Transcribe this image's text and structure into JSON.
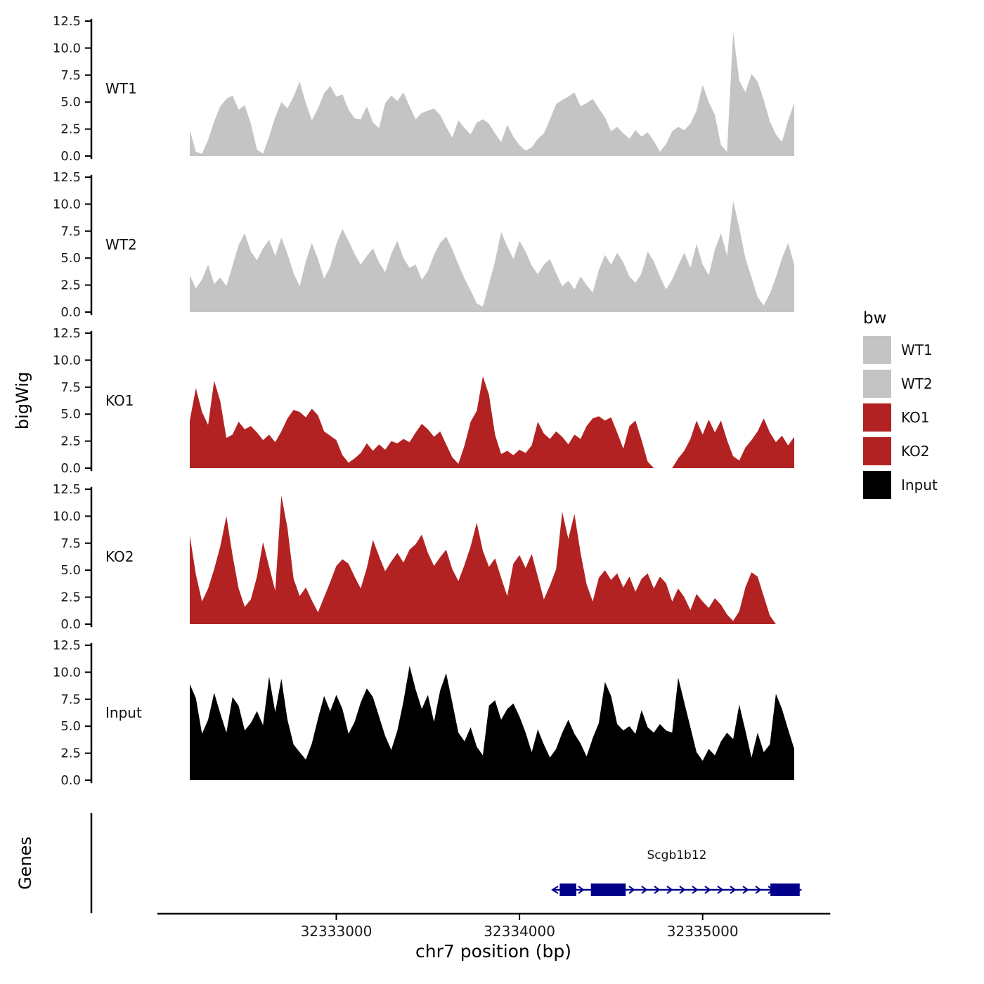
{
  "chart_data": {
    "type": "area",
    "title": "",
    "xlabel": "chr7 position (bp)",
    "ylabel": "bigWig",
    "x_range_bp": [
      32332200,
      32335500
    ],
    "x_ticks_bp": [
      32333000,
      32334000,
      32335000
    ],
    "y_range": [
      0,
      12.5
    ],
    "y_ticks": [
      0.0,
      2.5,
      5.0,
      7.5,
      10.0,
      12.5
    ],
    "tracks": [
      {
        "name": "WT1",
        "color": "#C4C4C4",
        "values": [
          2.4,
          0.4,
          0.2,
          1.5,
          3.2,
          4.6,
          5.3,
          5.6,
          4.3,
          4.7,
          3.0,
          0.6,
          0.2,
          1.8,
          3.6,
          5.0,
          4.4,
          5.5,
          6.9,
          4.9,
          3.3,
          4.4,
          5.8,
          6.5,
          5.5,
          5.7,
          4.3,
          3.5,
          3.4,
          4.6,
          3.1,
          2.6,
          4.9,
          5.6,
          5.1,
          5.9,
          4.6,
          3.4,
          4.0,
          4.2,
          4.4,
          3.8,
          2.7,
          1.7,
          3.3,
          2.6,
          2.0,
          3.1,
          3.4,
          3.0,
          2.1,
          1.3,
          2.9,
          1.8,
          1.0,
          0.5,
          0.8,
          1.6,
          2.1,
          3.4,
          4.8,
          5.2,
          5.5,
          5.9,
          4.6,
          4.9,
          5.3,
          4.4,
          3.6,
          2.3,
          2.7,
          2.1,
          1.6,
          2.4,
          1.8,
          2.2,
          1.4,
          0.4,
          1.1,
          2.3,
          2.7,
          2.4,
          3.0,
          4.2,
          6.6,
          5.0,
          3.8,
          1.0,
          0.4,
          11.5,
          7.0,
          5.9,
          7.6,
          6.9,
          5.2,
          3.2,
          2.0,
          1.3,
          3.3,
          4.9
        ]
      },
      {
        "name": "WT2",
        "color": "#C4C4C4",
        "values": [
          3.4,
          2.2,
          3.0,
          4.4,
          2.6,
          3.2,
          2.4,
          4.3,
          6.2,
          7.3,
          5.6,
          4.8,
          5.9,
          6.7,
          5.2,
          6.9,
          5.4,
          3.6,
          2.4,
          4.7,
          6.4,
          4.9,
          3.1,
          4.2,
          6.3,
          7.7,
          6.6,
          5.4,
          4.4,
          5.2,
          5.9,
          4.6,
          3.7,
          5.4,
          6.6,
          5.0,
          4.1,
          4.4,
          3.0,
          3.8,
          5.3,
          6.4,
          7.0,
          5.8,
          4.4,
          3.1,
          2.0,
          0.8,
          0.5,
          2.6,
          4.7,
          7.4,
          6.1,
          4.9,
          6.6,
          5.6,
          4.3,
          3.5,
          4.4,
          4.9,
          3.6,
          2.4,
          2.9,
          2.1,
          3.3,
          2.5,
          1.8,
          3.9,
          5.3,
          4.4,
          5.5,
          4.6,
          3.3,
          2.7,
          3.6,
          5.6,
          4.7,
          3.3,
          2.1,
          3.0,
          4.3,
          5.5,
          4.1,
          6.3,
          4.4,
          3.4,
          5.8,
          7.3,
          5.2,
          10.3,
          7.8,
          5.0,
          3.2,
          1.4,
          0.6,
          1.7,
          3.2,
          5.0,
          6.4,
          4.4
        ]
      },
      {
        "name": "KO1",
        "color": "#B22222",
        "values": [
          4.4,
          7.4,
          5.2,
          4.0,
          8.1,
          6.2,
          2.8,
          3.1,
          4.3,
          3.6,
          3.9,
          3.3,
          2.6,
          3.1,
          2.4,
          3.4,
          4.6,
          5.4,
          5.2,
          4.7,
          5.5,
          4.9,
          3.4,
          3.0,
          2.6,
          1.2,
          0.5,
          0.9,
          1.4,
          2.3,
          1.6,
          2.2,
          1.7,
          2.5,
          2.3,
          2.7,
          2.4,
          3.3,
          4.1,
          3.6,
          2.9,
          3.4,
          2.2,
          1.0,
          0.4,
          2.1,
          4.3,
          5.3,
          8.5,
          6.8,
          3.1,
          1.3,
          1.6,
          1.2,
          1.7,
          1.4,
          2.1,
          4.3,
          3.2,
          2.7,
          3.4,
          2.9,
          2.2,
          3.1,
          2.7,
          3.9,
          4.6,
          4.8,
          4.4,
          4.7,
          3.3,
          1.8,
          3.9,
          4.4,
          2.6,
          0.6,
          0,
          0,
          0,
          0,
          0.9,
          1.6,
          2.7,
          4.4,
          3.1,
          4.5,
          3.3,
          4.4,
          2.6,
          1.1,
          0.7,
          1.9,
          2.6,
          3.4,
          4.6,
          3.3,
          2.4,
          3.0,
          2.1,
          2.9
        ]
      },
      {
        "name": "KO2",
        "color": "#B22222",
        "values": [
          8.2,
          4.6,
          2.1,
          3.3,
          5.1,
          7.2,
          10.0,
          6.4,
          3.3,
          1.6,
          2.3,
          4.4,
          7.6,
          5.3,
          3.1,
          11.9,
          8.9,
          4.2,
          2.6,
          3.4,
          2.2,
          1.1,
          2.5,
          3.9,
          5.4,
          6.0,
          5.6,
          4.4,
          3.3,
          5.2,
          7.8,
          6.3,
          4.9,
          5.8,
          6.6,
          5.7,
          6.9,
          7.4,
          8.3,
          6.6,
          5.4,
          6.2,
          6.9,
          5.1,
          4.0,
          5.5,
          7.2,
          9.4,
          6.8,
          5.3,
          6.1,
          4.3,
          2.6,
          5.6,
          6.4,
          5.2,
          6.5,
          4.4,
          2.3,
          3.6,
          5.1,
          10.4,
          7.9,
          10.2,
          6.6,
          3.7,
          2.1,
          4.3,
          5.0,
          4.1,
          4.7,
          3.4,
          4.4,
          3.0,
          4.2,
          4.7,
          3.3,
          4.4,
          3.8,
          2.1,
          3.3,
          2.5,
          1.3,
          2.8,
          2.1,
          1.5,
          2.4,
          1.8,
          0.9,
          0.3,
          1.2,
          3.4,
          4.8,
          4.4,
          2.6,
          0.8,
          0,
          0,
          0,
          0
        ]
      },
      {
        "name": "Input",
        "color": "#000000",
        "values": [
          8.9,
          7.6,
          4.3,
          5.6,
          8.1,
          6.2,
          4.4,
          7.7,
          6.9,
          4.6,
          5.3,
          6.4,
          5.1,
          9.6,
          6.3,
          9.4,
          5.6,
          3.3,
          2.6,
          1.9,
          3.4,
          5.7,
          7.8,
          6.4,
          7.9,
          6.6,
          4.3,
          5.4,
          7.2,
          8.5,
          7.7,
          5.9,
          4.1,
          2.8,
          4.6,
          7.3,
          10.6,
          8.4,
          6.6,
          7.9,
          5.4,
          8.3,
          9.9,
          7.2,
          4.4,
          3.6,
          4.9,
          3.1,
          2.3,
          6.9,
          7.4,
          5.6,
          6.6,
          7.1,
          5.9,
          4.4,
          2.6,
          4.7,
          3.3,
          2.1,
          2.9,
          4.4,
          5.6,
          4.3,
          3.4,
          2.2,
          3.9,
          5.3,
          9.1,
          7.8,
          5.2,
          4.6,
          5.0,
          4.3,
          6.5,
          4.9,
          4.4,
          5.2,
          4.6,
          4.4,
          9.5,
          7.2,
          4.9,
          2.6,
          1.8,
          2.9,
          2.3,
          3.6,
          4.4,
          3.8,
          7.0,
          4.6,
          2.1,
          4.4,
          2.6,
          3.3,
          8.0,
          6.6,
          4.7,
          2.9
        ]
      }
    ],
    "genes_track": {
      "label": "Genes",
      "gene_color": "#00008B",
      "genes": [
        {
          "name": "Scgb1b12",
          "strand": "+",
          "start_bp": 32334180,
          "end_bp": 32335540,
          "exons_bp": [
            [
              32334220,
              32334310
            ],
            [
              32334390,
              32334580
            ],
            [
              32335370,
              32335530
            ]
          ]
        }
      ]
    },
    "legend": {
      "title": "bw",
      "entries": [
        {
          "label": "WT1",
          "color": "#C4C4C4"
        },
        {
          "label": "WT2",
          "color": "#C4C4C4"
        },
        {
          "label": "KO1",
          "color": "#B22222"
        },
        {
          "label": "KO2",
          "color": "#B22222"
        },
        {
          "label": "Input",
          "color": "#000000"
        }
      ]
    }
  }
}
